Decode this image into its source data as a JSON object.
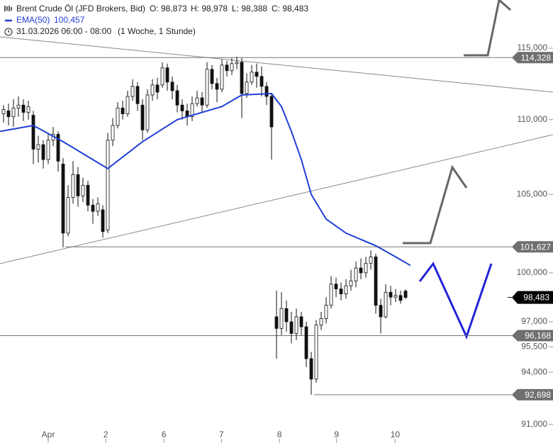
{
  "chart_data": {
    "type": "candlestick",
    "title": "Brent Crude Öl (JFD Brokers, Bid)",
    "ohlc_text": [
      "O: 98,873",
      "H: 98,978",
      "L: 98,388",
      "C: 98,483"
    ],
    "ema_name": "EMA(50)",
    "ema_last": "100,457",
    "timestamp": "31.03.2026 06:00 - 08:00",
    "timeframe": "(1 Woche, 1 Stunde)",
    "log": true,
    "xlim": [
      -0.714,
      110.71
    ],
    "ylim": [
      90.75,
      118.5
    ],
    "xticks": [
      {
        "value": 9,
        "label": "Apr"
      },
      {
        "value": 20.6,
        "label": "2"
      },
      {
        "value": 32.3,
        "label": "6"
      },
      {
        "value": 43.9,
        "label": "7"
      },
      {
        "value": 55.6,
        "label": "8"
      },
      {
        "value": 67.1,
        "label": "9"
      },
      {
        "value": 78.9,
        "label": "10"
      }
    ],
    "yticks": [
      {
        "value": 115,
        "label": "115,000"
      },
      {
        "value": 110,
        "label": "110,000"
      },
      {
        "value": 105,
        "label": "105,000"
      },
      {
        "value": 100,
        "label": "100,000"
      },
      {
        "value": 97,
        "label": "97,000"
      },
      {
        "value": 95.5,
        "label": "95,500"
      },
      {
        "value": 94,
        "label": "94,000"
      },
      {
        "value": 91,
        "label": "91,000"
      }
    ],
    "levels": [
      {
        "value": 114.328,
        "label": "114,328"
      },
      {
        "value": 101.627,
        "label": "101,627"
      },
      {
        "value": 96.168,
        "label": "96,168"
      },
      {
        "value": 92.698,
        "label": "92,698"
      }
    ],
    "last_price": {
      "value": 98.483,
      "label": "98,483"
    },
    "x": [
      0,
      1,
      2,
      3,
      4,
      5,
      6,
      7,
      8,
      9,
      10,
      11,
      12,
      13,
      14,
      15,
      16,
      17,
      18,
      19,
      20,
      21,
      22,
      23,
      24,
      25,
      26,
      27,
      28,
      29,
      30,
      31,
      32,
      33,
      34,
      35,
      36,
      37,
      38,
      39,
      40,
      41,
      42,
      43,
      44,
      45,
      46,
      47,
      48,
      49,
      50,
      51,
      52,
      53,
      54,
      55,
      56,
      57,
      58,
      59,
      60,
      61,
      62,
      63,
      64,
      65,
      66,
      67,
      68,
      69,
      70,
      71,
      72,
      73,
      74,
      75,
      76,
      77,
      78,
      79,
      80,
      81
    ],
    "open": [
      110.4,
      110.6,
      110.2,
      110.8,
      111.0,
      110.5,
      110.3,
      108.0,
      108.3,
      107.3,
      108.6,
      109.0,
      107.0,
      102.5,
      104.8,
      106.3,
      104.9,
      105.6,
      104.3,
      103.9,
      104.0,
      102.7,
      108.6,
      109.6,
      110.8,
      110.4,
      111.6,
      112.3,
      111.0,
      109.3,
      111.7,
      112.4,
      112.4,
      113.6,
      112.6,
      112.0,
      111.0,
      110.6,
      110.2,
      111.1,
      111.5,
      111.0,
      113.5,
      112.5,
      112.1,
      113.8,
      113.4,
      113.9,
      114.0,
      111.8,
      112.6,
      113.3,
      113.0,
      112.3,
      111.6,
      97.3,
      96.6,
      97.8,
      97.0,
      96.3,
      97.3,
      96.7,
      94.8,
      93.6,
      96.8,
      97.2,
      98.0,
      99.3,
      99.0,
      98.7,
      99.2,
      99.5,
      100.3,
      100.0,
      100.6,
      101.0,
      98.0,
      97.3,
      98.8,
      98.5,
      98.6,
      98.873
    ],
    "high": [
      111.0,
      111.1,
      111.4,
      111.6,
      111.4,
      111.3,
      110.6,
      108.9,
      108.6,
      109.0,
      109.5,
      109.2,
      107.4,
      105.6,
      107.2,
      106.8,
      106.1,
      105.9,
      104.7,
      104.8,
      104.3,
      109.1,
      110.1,
      111.2,
      111.3,
      112.0,
      112.8,
      112.6,
      111.4,
      112.1,
      112.8,
      112.9,
      114.0,
      113.9,
      113.0,
      112.4,
      111.4,
      111.1,
      111.6,
      112.0,
      111.9,
      114.0,
      113.8,
      112.9,
      114.2,
      114.1,
      114.3,
      114.4,
      114.3,
      113.2,
      113.8,
      113.9,
      113.7,
      112.6,
      111.8,
      98.9,
      98.8,
      98.3,
      97.6,
      97.8,
      97.6,
      97.0,
      95.2,
      97.1,
      97.6,
      98.5,
      99.8,
      99.7,
      99.4,
      99.6,
      100.2,
      100.7,
      100.9,
      101.0,
      101.4,
      101.2,
      98.4,
      99.3,
      99.2,
      99.0,
      98.9,
      98.978
    ],
    "low": [
      109.8,
      109.6,
      109.5,
      110.2,
      109.9,
      110.0,
      107.0,
      107.1,
      106.7,
      107.0,
      108.2,
      106.5,
      101.6,
      102.3,
      104.4,
      104.2,
      104.5,
      103.9,
      103.1,
      103.6,
      102.2,
      102.5,
      108.2,
      109.4,
      110.0,
      110.2,
      111.3,
      110.6,
      108.6,
      109.1,
      111.3,
      111.4,
      112.2,
      112.0,
      111.4,
      110.5,
      110.0,
      109.6,
      109.9,
      110.9,
      110.5,
      110.8,
      112.1,
      111.2,
      111.9,
      113.0,
      113.1,
      113.5,
      110.1,
      111.5,
      112.4,
      112.2,
      111.6,
      111.0,
      107.3,
      94.8,
      96.2,
      96.4,
      95.7,
      95.9,
      96.2,
      94.3,
      92.7,
      93.4,
      96.5,
      96.9,
      97.8,
      98.5,
      98.3,
      98.4,
      98.9,
      99.1,
      99.6,
      99.7,
      100.2,
      97.5,
      96.3,
      97.2,
      98.0,
      98.2,
      98.1,
      98.388
    ],
    "close": [
      110.7,
      110.2,
      110.8,
      111.0,
      110.5,
      110.9,
      108.0,
      108.3,
      107.3,
      108.6,
      109.0,
      107.2,
      102.5,
      104.8,
      106.3,
      104.9,
      105.6,
      104.3,
      103.9,
      104.4,
      102.6,
      108.6,
      109.6,
      110.8,
      110.4,
      111.6,
      112.3,
      111.1,
      109.3,
      111.7,
      112.4,
      111.9,
      113.6,
      112.6,
      112.0,
      111.0,
      110.6,
      110.2,
      111.1,
      111.5,
      111.0,
      113.5,
      112.5,
      112.1,
      113.8,
      113.4,
      113.9,
      114.0,
      111.8,
      112.6,
      113.3,
      113.0,
      112.3,
      111.6,
      109.5,
      96.6,
      97.8,
      97.0,
      96.3,
      97.3,
      96.7,
      94.8,
      93.6,
      96.8,
      97.2,
      98.0,
      99.3,
      99.0,
      98.7,
      99.2,
      99.5,
      100.3,
      100.0,
      100.6,
      101.0,
      98.0,
      97.3,
      98.8,
      98.5,
      98.6,
      98.3,
      98.483
    ],
    "ema": {
      "name": "EMA(50)",
      "color": "#1f3fd6",
      "x": [
        -0.7,
        6,
        12,
        21,
        28,
        35,
        44,
        48,
        54,
        56,
        58,
        60,
        62,
        65,
        69,
        75,
        79,
        82
      ],
      "values": [
        109.2,
        109.6,
        108.5,
        106.7,
        108.5,
        110.0,
        110.9,
        111.7,
        111.8,
        110.9,
        109.2,
        107.3,
        105.0,
        103.4,
        102.5,
        101.7,
        101.0,
        100.457
      ]
    }
  }
}
